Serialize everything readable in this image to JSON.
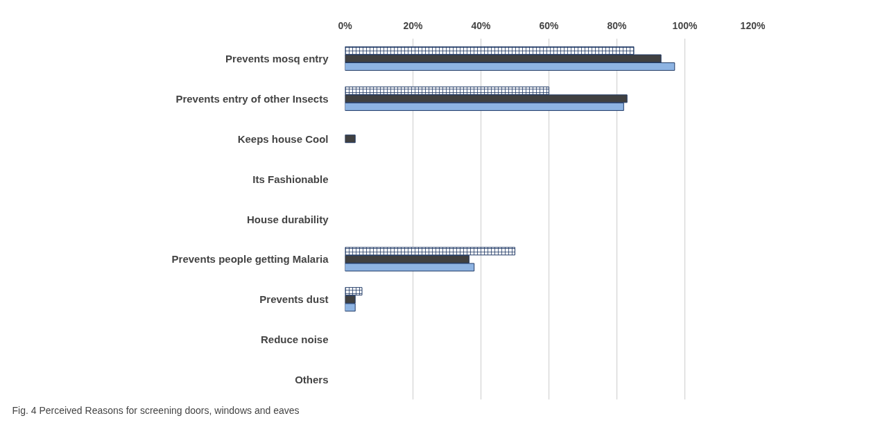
{
  "chart_data": {
    "type": "bar",
    "orientation": "horizontal",
    "categories": [
      "Prevents mosq entry",
      "Prevents entry of other Insects",
      "Keeps house Cool",
      "Its Fashionable",
      "House durability",
      "Prevents people getting Malaria",
      "Prevents dust",
      "Reduce noise",
      "Others"
    ],
    "series": [
      {
        "color": "#1f3864",
        "values": [
          85,
          60,
          0,
          0,
          0,
          50,
          5,
          0,
          0
        ]
      },
      {
        "color": "#404040",
        "values": [
          93,
          83,
          3,
          0,
          0,
          36.5,
          3,
          0,
          0
        ]
      },
      {
        "color": "#8eb4e3",
        "values": [
          97,
          82,
          0,
          0,
          0,
          38,
          3,
          0,
          0
        ]
      }
    ],
    "xlim": [
      0,
      120
    ],
    "xticks": [
      {
        "value": 0,
        "label": "0%"
      },
      {
        "value": 20,
        "label": "20%"
      },
      {
        "value": 40,
        "label": "40%"
      },
      {
        "value": 60,
        "label": "60%"
      },
      {
        "value": 80,
        "label": "80%"
      },
      {
        "value": 100,
        "label": "100%"
      },
      {
        "value": 120,
        "label": "120%"
      }
    ],
    "grid": "x",
    "annotations": [
      "Fig. 4 Perceived Reasons for screening doors, windows and eaves"
    ]
  }
}
